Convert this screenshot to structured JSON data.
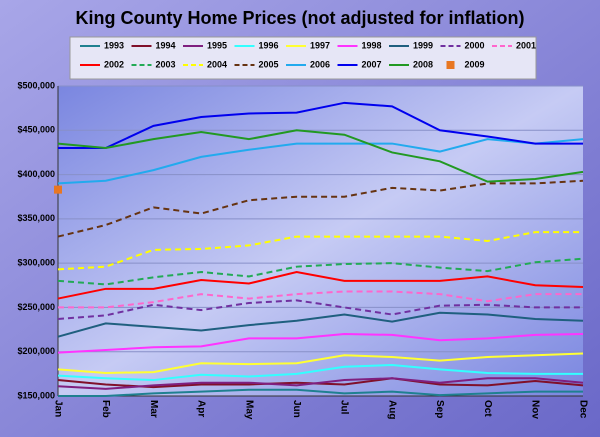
{
  "chart_data": {
    "type": "line",
    "title": "King County Home Prices (not adjusted for inflation)",
    "categories": [
      "Jan",
      "Feb",
      "Mar",
      "Apr",
      "May",
      "Jun",
      "Jul",
      "Aug",
      "Sep",
      "Oct",
      "Nov",
      "Dec"
    ],
    "ylim": [
      150000,
      500000
    ],
    "yticks": [
      {
        "value": 150000,
        "label": "$150,000"
      },
      {
        "value": 200000,
        "label": "$200,000"
      },
      {
        "value": 250000,
        "label": "$250,000"
      },
      {
        "value": 300000,
        "label": "$300,000"
      },
      {
        "value": 350000,
        "label": "$350,000"
      },
      {
        "value": 400000,
        "label": "$400,000"
      },
      {
        "value": 450000,
        "label": "$450,000"
      },
      {
        "value": 500000,
        "label": "$500,000"
      }
    ],
    "grid": true,
    "series": [
      {
        "name": "1993",
        "color": "#1f8090",
        "dash": false,
        "values": [
          150000,
          150000,
          153000,
          155000,
          157000,
          157000,
          153000,
          155000,
          151000,
          153000,
          155000,
          155000
        ]
      },
      {
        "name": "1994",
        "color": "#80102a",
        "dash": false,
        "values": [
          168000,
          163000,
          160000,
          163000,
          163000,
          165000,
          163000,
          170000,
          163000,
          162000,
          167000,
          162000
        ]
      },
      {
        "name": "1995",
        "color": "#7f1f7f",
        "dash": false,
        "values": [
          161000,
          158000,
          162000,
          165000,
          165000,
          162000,
          168000,
          170000,
          165000,
          170000,
          170000,
          165000
        ]
      },
      {
        "name": "1996",
        "color": "#33ffff",
        "dash": false,
        "values": [
          173000,
          170000,
          168000,
          174000,
          172000,
          175000,
          183000,
          185000,
          180000,
          176000,
          175000,
          175000
        ]
      },
      {
        "name": "1997",
        "color": "#ffff33",
        "dash": false,
        "values": [
          180000,
          176000,
          177000,
          187000,
          186000,
          187000,
          196000,
          194000,
          190000,
          194000,
          196000,
          198000
        ]
      },
      {
        "name": "1998",
        "color": "#ff33ff",
        "dash": false,
        "values": [
          199000,
          202000,
          205000,
          206000,
          215000,
          215000,
          220000,
          219000,
          213000,
          215000,
          219000,
          220000
        ]
      },
      {
        "name": "1999",
        "color": "#1f5f7f",
        "dash": false,
        "values": [
          217000,
          232000,
          228000,
          224000,
          230000,
          235000,
          242000,
          234000,
          244000,
          242000,
          237000,
          235000
        ]
      },
      {
        "name": "2000",
        "color": "#7030a0",
        "dash": true,
        "values": [
          237000,
          241000,
          253000,
          247000,
          255000,
          258000,
          250000,
          242000,
          252000,
          253000,
          250000,
          250000
        ]
      },
      {
        "name": "2001",
        "color": "#ff66cc",
        "dash": true,
        "values": [
          250000,
          250000,
          256000,
          265000,
          260000,
          265000,
          268000,
          268000,
          265000,
          257000,
          265000,
          265000
        ]
      },
      {
        "name": "2002",
        "color": "#ff0000",
        "dash": false,
        "values": [
          260000,
          271000,
          271000,
          281000,
          277000,
          290000,
          280000,
          280000,
          280000,
          285000,
          275000,
          273000
        ]
      },
      {
        "name": "2003",
        "color": "#22aa55",
        "dash": true,
        "values": [
          280000,
          276000,
          284000,
          290000,
          285000,
          296000,
          299000,
          300000,
          295000,
          291000,
          301000,
          305000
        ]
      },
      {
        "name": "2004",
        "color": "#ffff00",
        "dash": true,
        "values": [
          293000,
          296000,
          315000,
          316000,
          320000,
          330000,
          330000,
          330000,
          330000,
          325000,
          335000,
          335000
        ]
      },
      {
        "name": "2005",
        "color": "#663311",
        "dash": true,
        "values": [
          330000,
          343000,
          363000,
          356000,
          371000,
          375000,
          375000,
          385000,
          382000,
          390000,
          390000,
          393000
        ]
      },
      {
        "name": "2006",
        "color": "#22aaee",
        "dash": false,
        "values": [
          390000,
          393000,
          405000,
          420000,
          428000,
          435000,
          435000,
          435000,
          426000,
          440000,
          435000,
          440000
        ]
      },
      {
        "name": "2007",
        "color": "#0000ee",
        "dash": false,
        "values": [
          430000,
          430000,
          455000,
          465000,
          469000,
          470000,
          481000,
          477000,
          450000,
          443000,
          435000,
          435000
        ]
      },
      {
        "name": "2008",
        "color": "#229922",
        "dash": false,
        "values": [
          435000,
          430000,
          440000,
          448000,
          440000,
          450000,
          445000,
          425000,
          415000,
          392000,
          395000,
          403000
        ]
      },
      {
        "name": "2009",
        "color": "#e87722",
        "dash": false,
        "marker": "square",
        "values": [
          383000,
          null,
          null,
          null,
          null,
          null,
          null,
          null,
          null,
          null,
          null,
          null
        ]
      }
    ]
  }
}
